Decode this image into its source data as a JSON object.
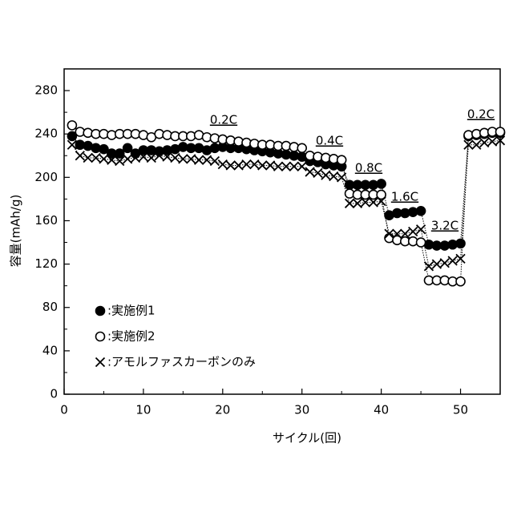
{
  "chart_data": {
    "type": "scatter",
    "xlabel": "サイクル(回)",
    "ylabel": "容量(mAh/g)",
    "xlim": [
      0,
      55
    ],
    "ylim": [
      0,
      300
    ],
    "xticks": [
      0,
      10,
      20,
      30,
      40,
      50
    ],
    "xminorticks": [
      5,
      15,
      25,
      35,
      45,
      55
    ],
    "yticks": [
      0,
      40,
      80,
      120,
      160,
      200,
      240,
      280
    ],
    "yminorticks": [
      20,
      60,
      100,
      140,
      180,
      220,
      260
    ],
    "x": [
      1,
      2,
      3,
      4,
      5,
      6,
      7,
      8,
      9,
      10,
      11,
      12,
      13,
      14,
      15,
      16,
      17,
      18,
      19,
      20,
      21,
      22,
      23,
      24,
      25,
      26,
      27,
      28,
      29,
      30,
      31,
      32,
      33,
      34,
      35,
      36,
      37,
      38,
      39,
      40,
      41,
      42,
      43,
      44,
      45,
      46,
      47,
      48,
      49,
      50,
      51,
      52,
      53,
      54,
      55
    ],
    "series": [
      {
        "name": ":実施例1",
        "color": "#000000",
        "marker": "filled-circle",
        "values": [
          238,
          230,
          229,
          227,
          226,
          222,
          222,
          227,
          222,
          225,
          225,
          224,
          225,
          226,
          228,
          227,
          227,
          225,
          227,
          228,
          227,
          227,
          226,
          225,
          224,
          223,
          222,
          221,
          220,
          219,
          215,
          214,
          212,
          211,
          210,
          193,
          193,
          193,
          193,
          194,
          165,
          167,
          167,
          168,
          169,
          138,
          137,
          137,
          138,
          139,
          238,
          239,
          240,
          241,
          241
        ]
      },
      {
        "name": ":実施例2",
        "color": "#000000",
        "marker": "open-circle",
        "values": [
          248,
          242,
          241,
          240,
          240,
          239,
          240,
          240,
          240,
          239,
          237,
          240,
          239,
          238,
          238,
          238,
          239,
          237,
          236,
          235,
          234,
          233,
          232,
          231,
          230,
          230,
          229,
          229,
          228,
          227,
          220,
          219,
          218,
          217,
          216,
          185,
          184,
          184,
          184,
          184,
          144,
          142,
          141,
          141,
          140,
          105,
          105,
          105,
          104,
          104,
          239,
          240,
          241,
          242,
          242
        ]
      },
      {
        "name": ":アモルファスカーボンのみ",
        "color": "#000000",
        "marker": "cross",
        "values": [
          230,
          220,
          218,
          218,
          217,
          216,
          215,
          217,
          218,
          219,
          218,
          220,
          219,
          218,
          217,
          217,
          216,
          216,
          215,
          212,
          211,
          211,
          212,
          212,
          211,
          211,
          210,
          210,
          210,
          210,
          205,
          204,
          202,
          201,
          200,
          176,
          176,
          177,
          177,
          178,
          148,
          148,
          148,
          150,
          152,
          118,
          120,
          121,
          123,
          125,
          230,
          230,
          232,
          233,
          234
        ]
      }
    ],
    "annotations": [
      "0.2C",
      "0.4C",
      "0.8C",
      "1.6C",
      "3.2C",
      "0.2C"
    ]
  }
}
